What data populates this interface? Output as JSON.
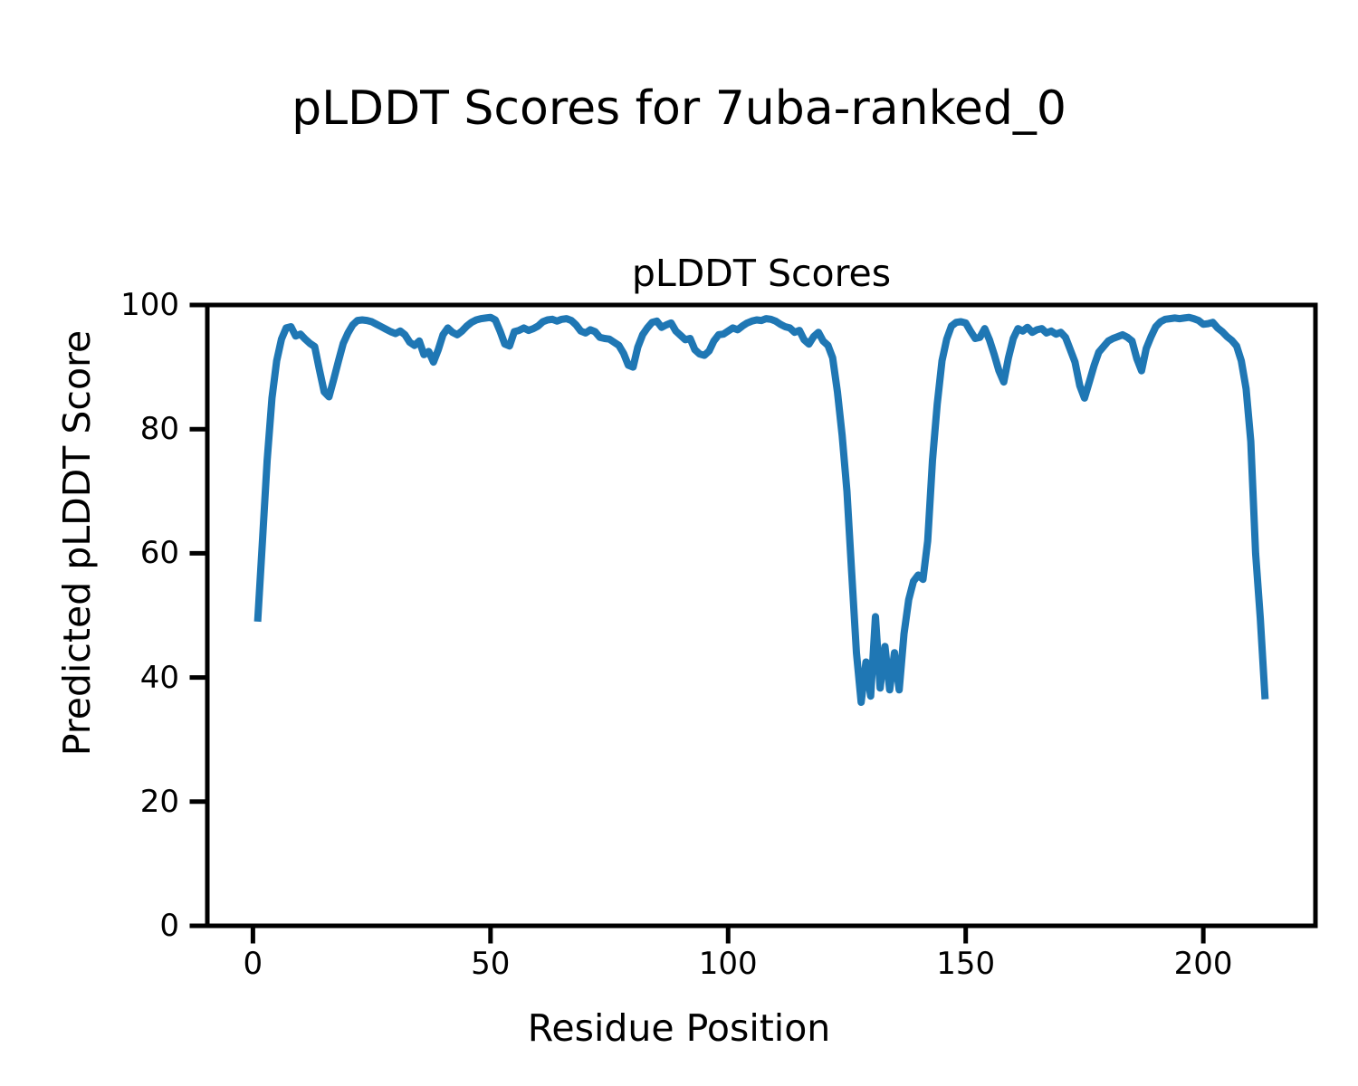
{
  "figure": {
    "suptitle": "pLDDT Scores for 7uba-ranked_0"
  },
  "chart_data": {
    "type": "line",
    "title": "pLDDT Scores",
    "xlabel": "Residue Position",
    "ylabel": "Predicted pLDDT Score",
    "xlim": [
      -9.6,
      223.6
    ],
    "ylim": [
      0,
      100
    ],
    "xticks": [
      0,
      50,
      100,
      150,
      200
    ],
    "yticks": [
      0,
      20,
      40,
      60,
      80,
      100
    ],
    "grid": false,
    "legend": "none",
    "line_color": "#1f77b4",
    "axis_color": "#000000",
    "series": [
      {
        "name": "pLDDT",
        "x_start": 1,
        "x_step": 1,
        "values": [
          49.0,
          62.0,
          75.0,
          85.0,
          91.0,
          94.5,
          96.3,
          96.5,
          95.0,
          95.3,
          94.5,
          93.8,
          93.3,
          89.5,
          86.0,
          85.2,
          88.0,
          91.0,
          93.8,
          95.5,
          96.8,
          97.5,
          97.6,
          97.5,
          97.3,
          96.9,
          96.5,
          96.1,
          95.7,
          95.4,
          95.8,
          95.2,
          94.0,
          93.5,
          94.2,
          92.0,
          92.5,
          90.8,
          92.8,
          95.2,
          96.3,
          95.6,
          95.2,
          95.8,
          96.6,
          97.2,
          97.6,
          97.8,
          97.9,
          98.0,
          97.6,
          95.8,
          93.7,
          93.4,
          95.7,
          95.9,
          96.3,
          95.9,
          96.2,
          96.6,
          97.3,
          97.6,
          97.7,
          97.4,
          97.7,
          97.8,
          97.5,
          96.8,
          95.8,
          95.5,
          96.0,
          95.7,
          94.8,
          94.6,
          94.5,
          94.0,
          93.5,
          92.2,
          90.3,
          90.0,
          93.2,
          95.2,
          96.3,
          97.2,
          97.4,
          96.4,
          96.8,
          97.1,
          95.8,
          95.1,
          94.4,
          94.6,
          92.8,
          92.1,
          91.9,
          92.6,
          94.2,
          95.2,
          95.3,
          95.8,
          96.3,
          96.0,
          96.6,
          97.1,
          97.4,
          97.6,
          97.5,
          97.8,
          97.7,
          97.4,
          96.9,
          96.5,
          96.3,
          95.6,
          95.9,
          94.4,
          93.7,
          94.9,
          95.6,
          94.2,
          93.5,
          91.5,
          86.0,
          79.0,
          70.0,
          57.0,
          44.0,
          36.0,
          42.5,
          37.0,
          49.8,
          38.3,
          45.0,
          38.0,
          44.0,
          38.0,
          47.0,
          52.5,
          55.5,
          56.5,
          55.8,
          62.0,
          75.0,
          84.0,
          91.0,
          94.5,
          96.6,
          97.2,
          97.3,
          97.1,
          95.8,
          94.6,
          94.8,
          96.2,
          94.4,
          92.0,
          89.4,
          87.6,
          91.5,
          94.6,
          96.2,
          95.8,
          96.4,
          95.6,
          96.0,
          96.2,
          95.5,
          95.8,
          95.3,
          95.6,
          94.8,
          92.8,
          90.8,
          87.0,
          85.0,
          87.6,
          90.2,
          92.4,
          93.3,
          94.2,
          94.6,
          94.9,
          95.2,
          94.8,
          94.2,
          91.4,
          89.4,
          93.0,
          94.9,
          96.5,
          97.3,
          97.7,
          97.8,
          97.9,
          97.8,
          97.9,
          98.0,
          97.8,
          97.5,
          96.9,
          97.0,
          97.2,
          96.3,
          95.7,
          94.9,
          94.3,
          93.4,
          91.0,
          86.5,
          78.0,
          60.0,
          49.5,
          36.5
        ]
      }
    ]
  }
}
